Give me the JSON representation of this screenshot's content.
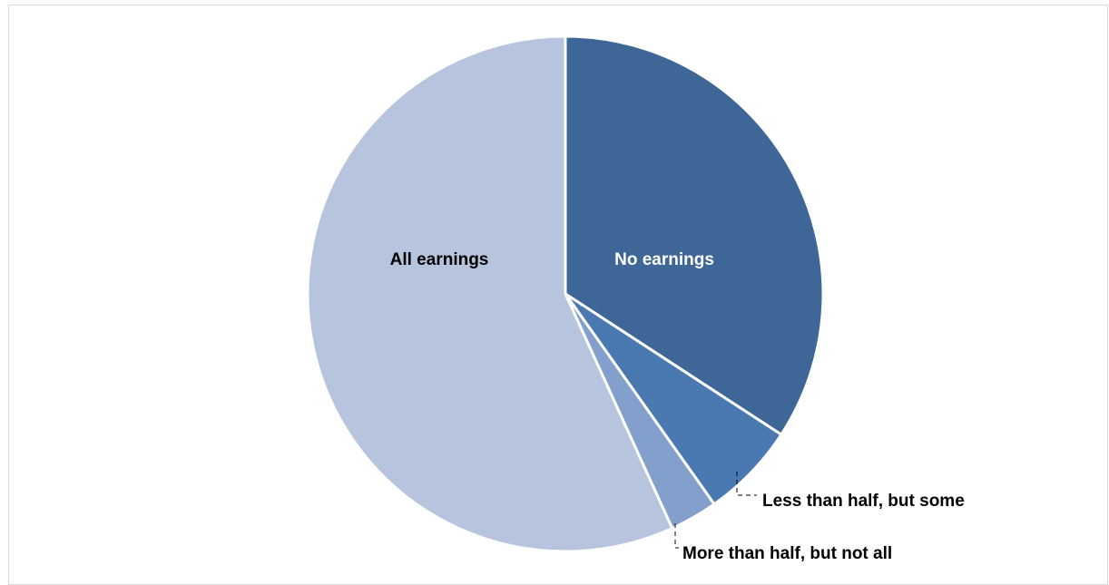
{
  "chart_data": {
    "type": "pie",
    "title": "",
    "start_angle_deg": 0,
    "direction": "clockwise",
    "slices": [
      {
        "label": "No earnings",
        "value": 34.2,
        "color": "#3e6696",
        "label_color": "#ffffff",
        "label_position": "inside"
      },
      {
        "label": "Less than half, but some",
        "value": 6.0,
        "color": "#4a78b0",
        "label_color": "#000000",
        "label_position": "outside"
      },
      {
        "label": "More than half, but not all",
        "value": 3.0,
        "color": "#839fcb",
        "label_color": "#000000",
        "label_position": "outside"
      },
      {
        "label": "All earnings",
        "value": 56.8,
        "color": "#b6c4dd",
        "label_color": "#000000",
        "label_position": "inside"
      }
    ],
    "slice_border_color": "#ffffff",
    "leader_line_color": "#000000"
  }
}
